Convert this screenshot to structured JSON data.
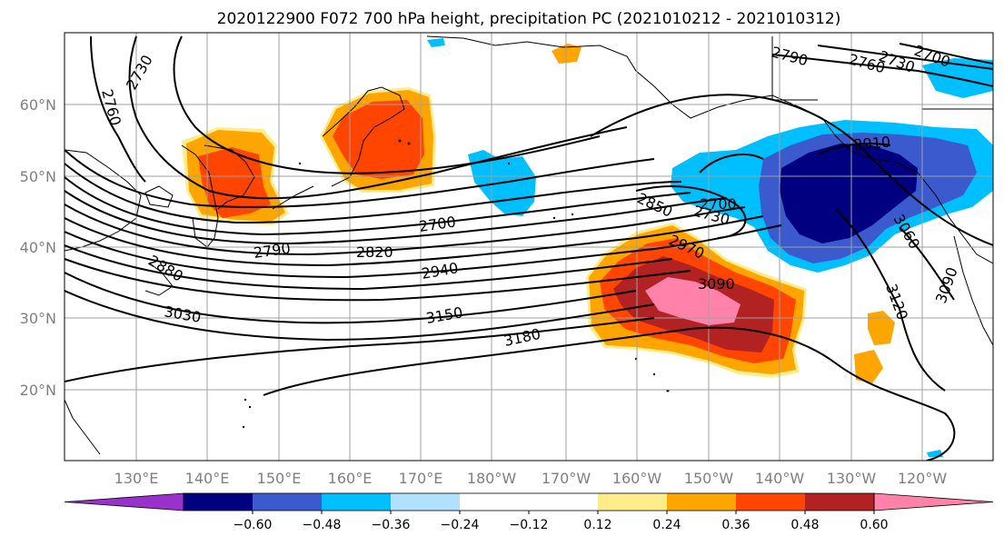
{
  "title": "2020122900 F072 700 hPa height, precipitation PC (2021010212 - 2021010312)",
  "lon_labels": [
    "130°E",
    "140°E",
    "150°E",
    "160°E",
    "170°E",
    "180°W",
    "170°W",
    "160°W",
    "150°W",
    "140°W",
    "130°W",
    "120°W"
  ],
  "lat_labels": [
    "20°N",
    "30°N",
    "40°N",
    "50°N",
    "60°N"
  ],
  "colorbar": {
    "colors": [
      "#9932cc",
      "#000080",
      "#3a5acd",
      "#00bfff",
      "#b0e2ff",
      "#ffffff",
      "#ffffff",
      "#ffec8b",
      "#ffa500",
      "#ff4500",
      "#b22222",
      "#ff82ab"
    ],
    "labels": [
      "−0.60",
      "−0.48",
      "−0.36",
      "−0.24",
      "−0.12",
      "0.12",
      "0.24",
      "0.36",
      "0.48",
      "0.60"
    ]
  },
  "contour_labels": [
    "2730",
    "2760",
    "2790",
    "2820",
    "2850",
    "2880",
    "2700",
    "2940",
    "2970",
    "3030",
    "3090",
    "3150",
    "3180",
    "3120",
    "3060",
    "3090",
    "2910",
    "2790",
    "2760",
    "2730",
    "2700",
    "2700",
    "2730"
  ]
}
